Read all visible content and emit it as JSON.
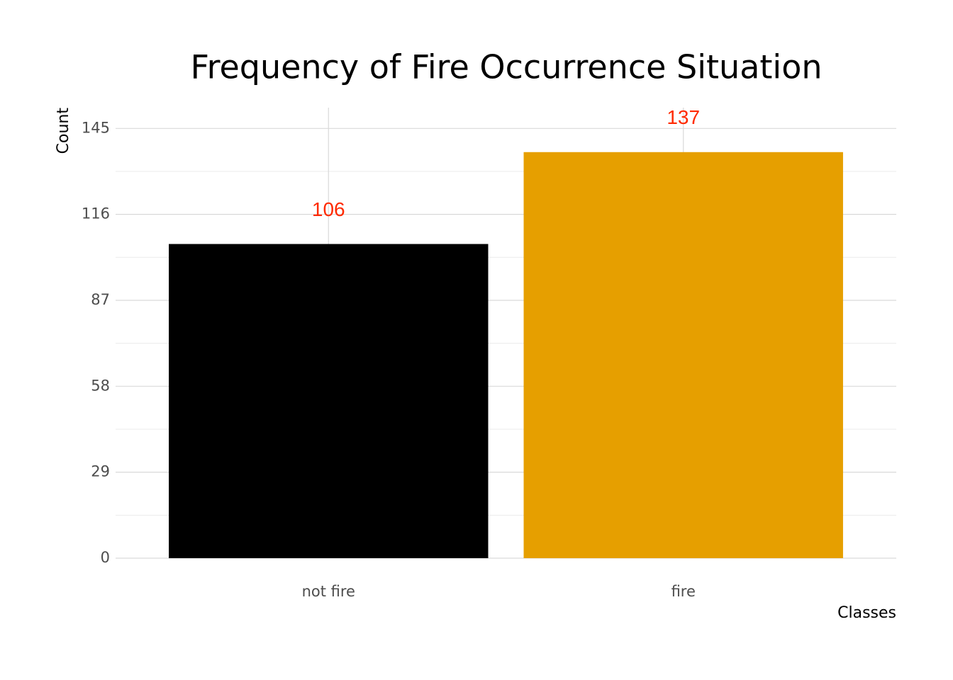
{
  "chart_data": {
    "type": "bar",
    "title": "Frequency of Fire Occurrence Situation",
    "x_label": "Classes",
    "y_label": "Count",
    "categories": [
      "not fire",
      "fire"
    ],
    "values": [
      106,
      137
    ],
    "colors": [
      "#000000",
      "#e69f00"
    ],
    "label_color": "#ff2a00",
    "ylim": [
      0,
      152
    ],
    "yticks": [
      0,
      29,
      58,
      87,
      116,
      145
    ],
    "grid": true
  }
}
